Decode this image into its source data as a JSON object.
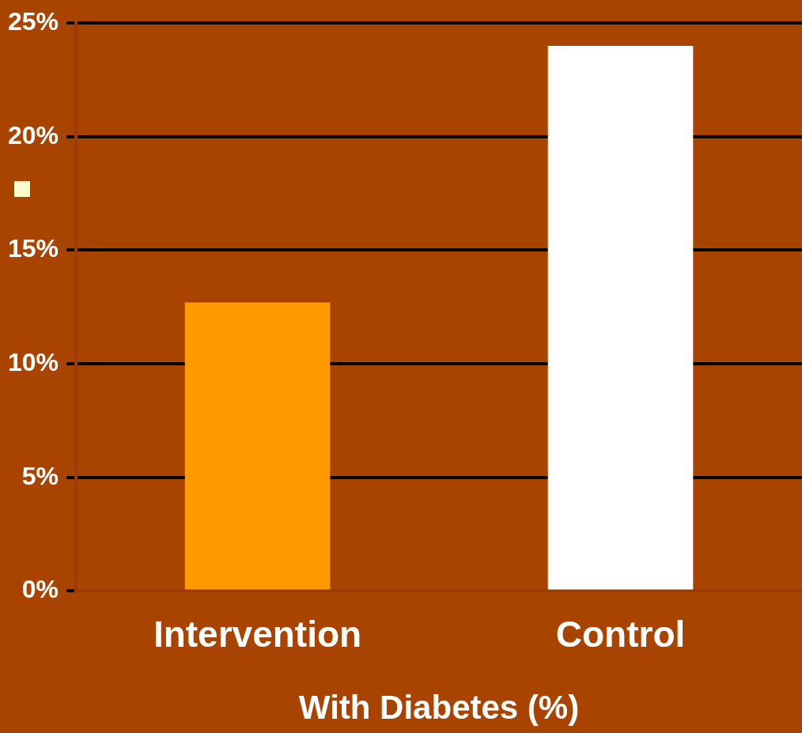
{
  "chart_data": {
    "type": "bar",
    "xlabel": "With Diabetes (%)",
    "categories": [
      "Intervention",
      "Control"
    ],
    "values": [
      12.7,
      24
    ],
    "colors": [
      "#ff9900",
      "#ffffff"
    ],
    "ylim": [
      0,
      25
    ],
    "yticks": [
      {
        "value": 0,
        "label": "0%"
      },
      {
        "value": 5,
        "label": "5%"
      },
      {
        "value": 10,
        "label": "10%"
      },
      {
        "value": 15,
        "label": "15%"
      },
      {
        "value": 20,
        "label": "20%"
      },
      {
        "value": 25,
        "label": "25%"
      }
    ],
    "grid": "y",
    "legend": false
  }
}
